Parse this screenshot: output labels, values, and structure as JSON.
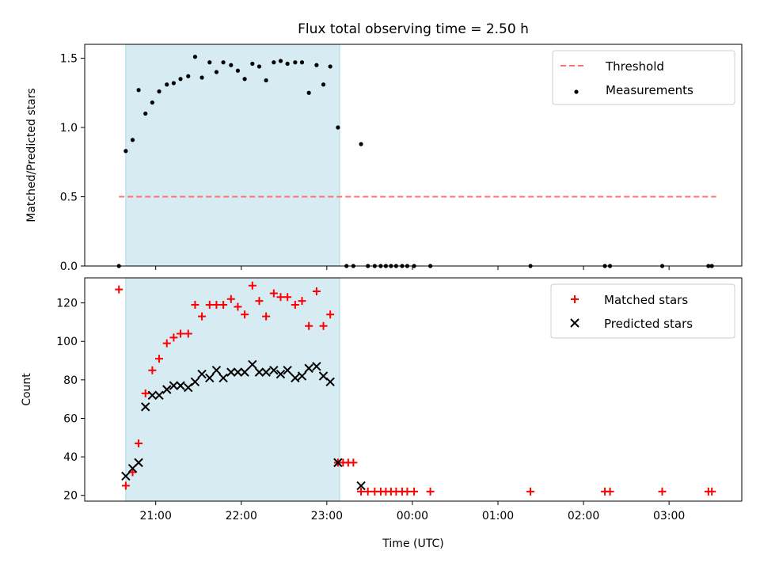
{
  "title": "Flux total observing time = 2.50 h",
  "colors": {
    "shade": "#add8e6",
    "threshold": "#ff6f6f",
    "matched": "#ff0000",
    "predicted": "#000000",
    "measurement": "#000000"
  },
  "xlabel": "Time (UTC)",
  "xticks": [
    {
      "t": 21.0,
      "label": "21:00"
    },
    {
      "t": 22.0,
      "label": "22:00"
    },
    {
      "t": 23.0,
      "label": "23:00"
    },
    {
      "t": 24.0,
      "label": "00:00"
    },
    {
      "t": 25.0,
      "label": "01:00"
    },
    {
      "t": 26.0,
      "label": "02:00"
    },
    {
      "t": 27.0,
      "label": "03:00"
    }
  ],
  "xlim": [
    20.17,
    27.85
  ],
  "shaded_interval": [
    20.65,
    23.15
  ],
  "chart_data": [
    {
      "type": "scatter",
      "ylabel": "Matched/Predicted stars",
      "ylim": [
        0,
        1.6
      ],
      "yticks": [
        {
          "v": 0.0,
          "label": "0.0"
        },
        {
          "v": 0.5,
          "label": "0.5"
        },
        {
          "v": 1.0,
          "label": "1.0"
        },
        {
          "v": 1.5,
          "label": "1.5"
        }
      ],
      "legend": {
        "position": "top-right",
        "entries": [
          "Threshold",
          "Measurements"
        ]
      },
      "threshold": {
        "name": "Threshold",
        "value": 0.5,
        "x": [
          20.57,
          27.55
        ]
      },
      "series": [
        {
          "name": "Measurements",
          "x": [
            20.57,
            20.65,
            20.73,
            20.8,
            20.88,
            20.96,
            21.04,
            21.13,
            21.21,
            21.29,
            21.38,
            21.46,
            21.54,
            21.63,
            21.71,
            21.79,
            21.88,
            21.96,
            22.04,
            22.13,
            22.21,
            22.29,
            22.38,
            22.46,
            22.54,
            22.63,
            22.71,
            22.79,
            22.88,
            22.96,
            23.04,
            23.13,
            23.23,
            23.31,
            23.4,
            23.48,
            23.56,
            23.63,
            23.69,
            23.75,
            23.81,
            23.88,
            23.94,
            24.02,
            24.21,
            25.38,
            26.25,
            26.31,
            26.92,
            27.46,
            27.5
          ],
          "y": [
            0.0,
            0.83,
            0.91,
            1.27,
            1.1,
            1.18,
            1.26,
            1.31,
            1.32,
            1.35,
            1.37,
            1.51,
            1.36,
            1.47,
            1.4,
            1.47,
            1.45,
            1.41,
            1.35,
            1.46,
            1.44,
            1.34,
            1.47,
            1.48,
            1.46,
            1.47,
            1.47,
            1.25,
            1.45,
            1.31,
            1.44,
            1.0,
            0.0,
            0.0,
            0.88,
            0.0,
            0.0,
            0.0,
            0.0,
            0.0,
            0.0,
            0.0,
            0.0,
            0.0,
            0.0,
            0.0,
            0.0,
            0.0,
            0.0,
            0.0,
            0.0
          ]
        }
      ]
    },
    {
      "type": "scatter",
      "ylabel": "Count",
      "ylim": [
        17,
        133
      ],
      "yticks": [
        {
          "v": 20,
          "label": "20"
        },
        {
          "v": 40,
          "label": "40"
        },
        {
          "v": 60,
          "label": "60"
        },
        {
          "v": 80,
          "label": "80"
        },
        {
          "v": 100,
          "label": "100"
        },
        {
          "v": 120,
          "label": "120"
        }
      ],
      "legend": {
        "position": "top-right",
        "entries": [
          "Matched stars",
          "Predicted stars"
        ]
      },
      "series": [
        {
          "name": "Matched stars",
          "marker": "plus",
          "x": [
            20.57,
            20.65,
            20.73,
            20.8,
            20.88,
            20.96,
            21.04,
            21.13,
            21.21,
            21.29,
            21.38,
            21.46,
            21.54,
            21.63,
            21.71,
            21.79,
            21.88,
            21.96,
            22.04,
            22.13,
            22.21,
            22.29,
            22.38,
            22.46,
            22.54,
            22.63,
            22.71,
            22.79,
            22.88,
            22.96,
            23.04,
            23.13,
            23.19,
            23.25,
            23.31,
            23.4,
            23.48,
            23.56,
            23.63,
            23.69,
            23.75,
            23.81,
            23.88,
            23.94,
            24.02,
            24.21,
            25.38,
            26.25,
            26.31,
            26.92,
            27.46,
            27.5
          ],
          "y": [
            127,
            25,
            32,
            47,
            73,
            85,
            91,
            99,
            102,
            104,
            104,
            119,
            113,
            119,
            119,
            119,
            122,
            118,
            114,
            129,
            121,
            113,
            125,
            123,
            123,
            119,
            121,
            108,
            126,
            108,
            114,
            37,
            37,
            37,
            37,
            22,
            22,
            22,
            22,
            22,
            22,
            22,
            22,
            22,
            22,
            22,
            22,
            22,
            22,
            22,
            22,
            22
          ]
        },
        {
          "name": "Predicted stars",
          "marker": "cross",
          "x": [
            20.65,
            20.73,
            20.8,
            20.88,
            20.96,
            21.04,
            21.13,
            21.21,
            21.29,
            21.38,
            21.46,
            21.54,
            21.63,
            21.71,
            21.79,
            21.88,
            21.96,
            22.04,
            22.13,
            22.21,
            22.29,
            22.38,
            22.46,
            22.54,
            22.63,
            22.71,
            22.79,
            22.88,
            22.96,
            23.04,
            23.13,
            23.4
          ],
          "y": [
            30,
            34,
            37,
            66,
            72,
            72,
            75,
            77,
            77,
            76,
            79,
            83,
            81,
            85,
            81,
            84,
            84,
            84,
            88,
            84,
            84,
            85,
            83,
            85,
            81,
            82,
            86,
            87,
            82,
            79,
            37,
            25
          ]
        }
      ]
    }
  ]
}
